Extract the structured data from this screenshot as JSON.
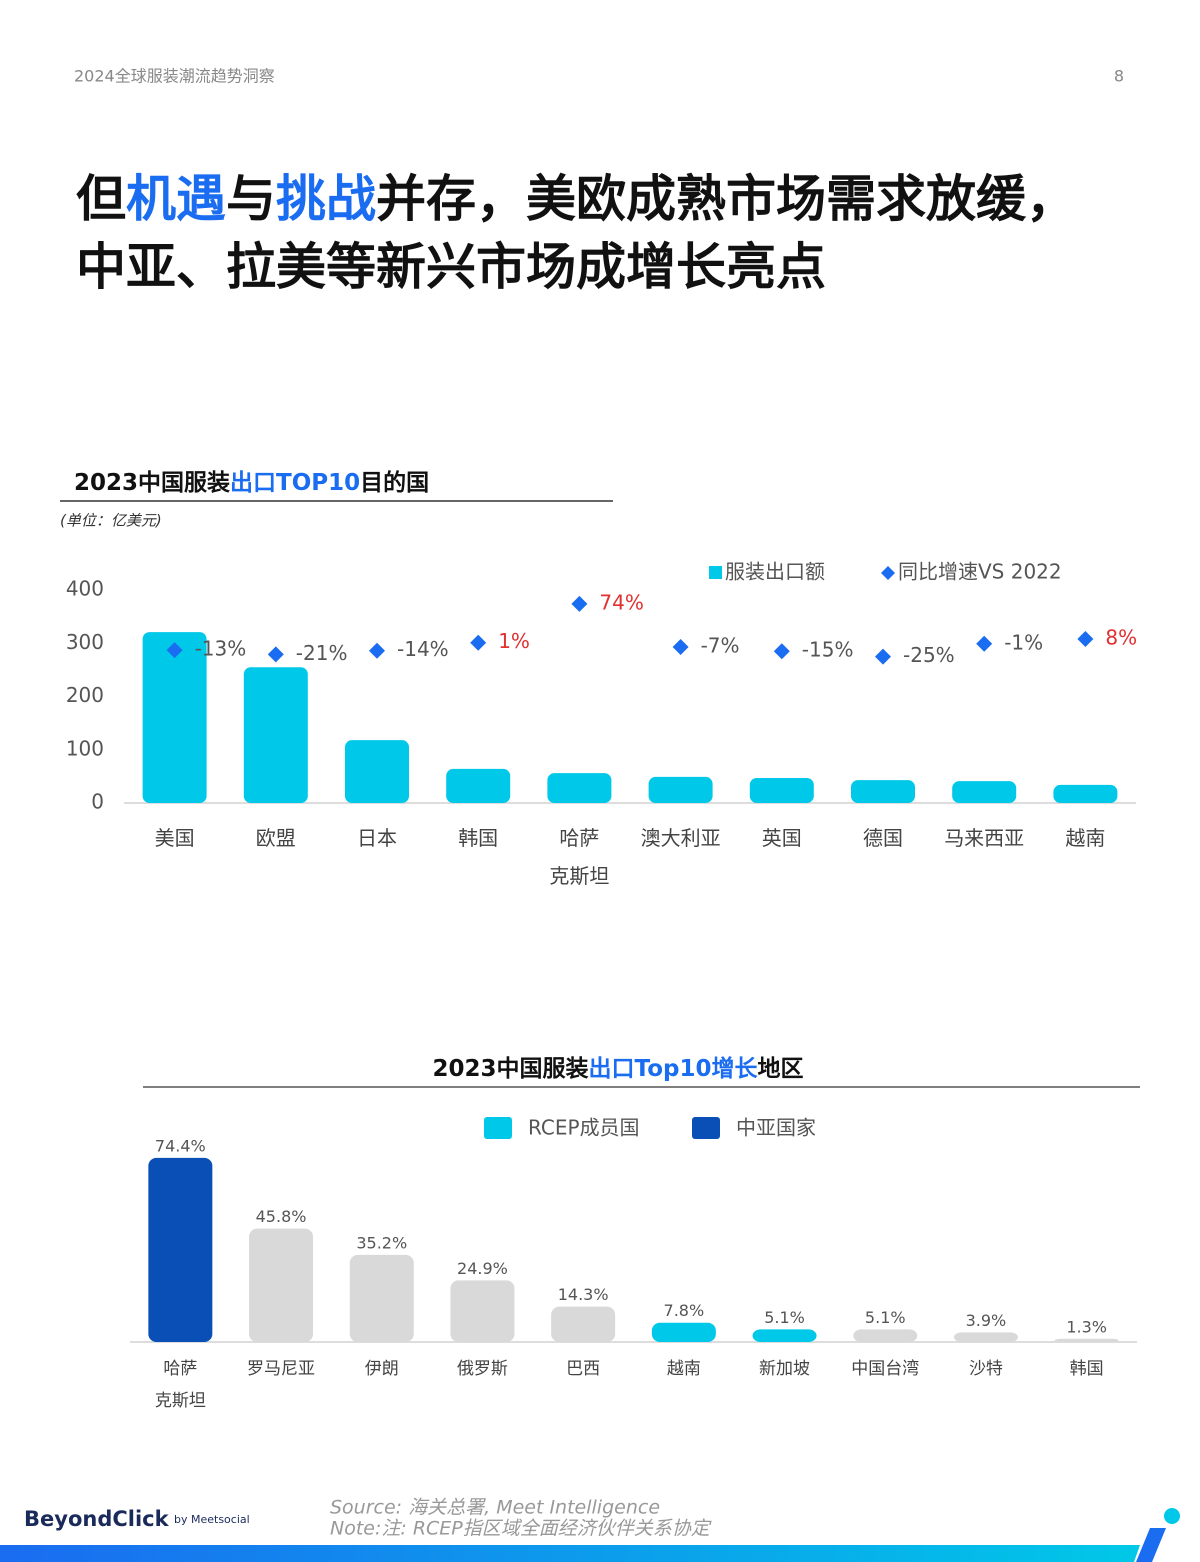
{
  "header": {
    "report": "2024全球服装潮流趋势洞察",
    "page": "8"
  },
  "title_lines": [
    [
      "但",
      "机遇",
      "与",
      "挑战",
      "并存，美欧成熟市场需求放缓，"
    ],
    [
      "中亚、拉美等新兴市场成增长亮点"
    ]
  ],
  "chart_data": [
    {
      "type": "bar",
      "title_parts": [
        "2023中国服装",
        "出口TOP10",
        "目的国"
      ],
      "unit": "(单位：亿美元)",
      "categories": [
        "美国",
        "欧盟",
        "日本",
        "韩国",
        "哈萨\n克斯坦",
        "澳大利亚",
        "英国",
        "德国",
        "马来西亚",
        "越南"
      ],
      "series": [
        {
          "name": "服装出口额",
          "color": "#00c8e8",
          "values": [
            321,
            255,
            118,
            64,
            56,
            49,
            47,
            43,
            41,
            34
          ]
        },
        {
          "name": "同比增速VS 2022",
          "marker": "diamond",
          "color": "#1a6cf0",
          "axis": "y2",
          "values": [
            -13,
            -21,
            -14,
            1,
            74,
            -7,
            -15,
            -25,
            -1,
            8
          ],
          "value_labels": [
            "-13%",
            "-21%",
            "-14%",
            "1%",
            "74%",
            "-7%",
            "-15%",
            "-25%",
            "-1%",
            "8%"
          ]
        }
      ],
      "ylim": [
        0,
        400
      ],
      "yticks": [
        0,
        100,
        200,
        300,
        400
      ],
      "y2lim": [
        -300,
        100
      ],
      "positive_label_color": "#e03030",
      "negative_label_color": "#555555"
    },
    {
      "type": "bar",
      "title_parts": [
        "2023中国服装",
        "出口Top10增长",
        "地区"
      ],
      "categories": [
        "哈萨\n克斯坦",
        "罗马尼亚",
        "伊朗",
        "俄罗斯",
        "巴西",
        "越南",
        "新加坡",
        "中国台湾",
        "沙特",
        "韩国"
      ],
      "values": [
        74.4,
        45.8,
        35.2,
        24.9,
        14.3,
        7.8,
        5.1,
        5.1,
        3.9,
        1.3
      ],
      "value_labels": [
        "74.4%",
        "45.8%",
        "35.2%",
        "24.9%",
        "14.3%",
        "7.8%",
        "5.1%",
        "5.1%",
        "3.9%",
        "1.3%"
      ],
      "colors": [
        "#0a4fb5",
        "#d9d9d9",
        "#d9d9d9",
        "#d9d9d9",
        "#d9d9d9",
        "#00c8e8",
        "#00c8e8",
        "#d9d9d9",
        "#d9d9d9",
        "#d9d9d9"
      ],
      "legend": [
        {
          "name": "RCEP成员国",
          "color": "#00c8e8"
        },
        {
          "name": "中亚国家",
          "color": "#0a4fb5"
        }
      ],
      "ylim": [
        0,
        80
      ]
    }
  ],
  "footer": {
    "source": "Source: 海关总署, Meet Intelligence",
    "note": "Note:注: RCEP指区域全面经济伙伴关系协定",
    "brand": "BeyondClick",
    "by": "by Meetsocial"
  }
}
